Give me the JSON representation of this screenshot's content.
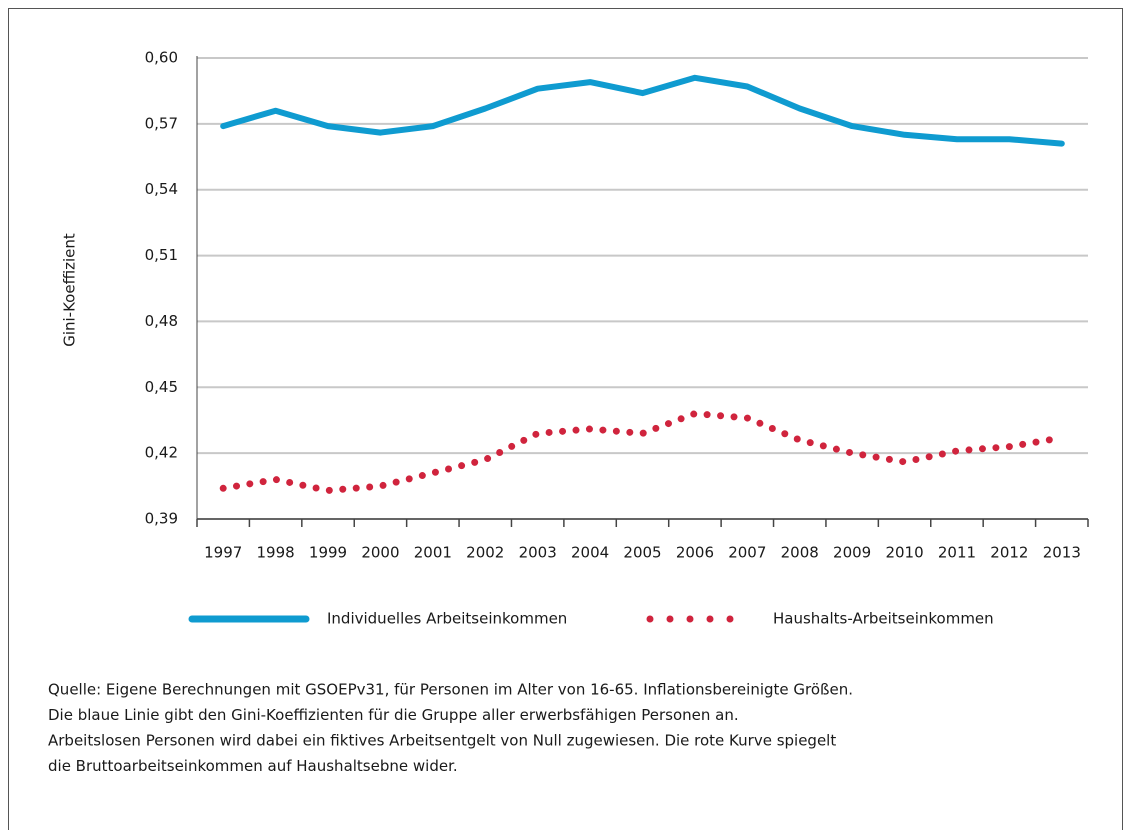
{
  "chart_data": {
    "type": "line",
    "y_label": "Gini-Koeffizient",
    "categories": [
      "1997",
      "1998",
      "1999",
      "2000",
      "2001",
      "2002",
      "2003",
      "2004",
      "2005",
      "2006",
      "2007",
      "2008",
      "2009",
      "2010",
      "2011",
      "2012",
      "2013"
    ],
    "series": [
      {
        "name": "Individuelles Arbeitseinkommen",
        "color": "#0f9bd0",
        "style": "solid",
        "values": [
          0.569,
          0.576,
          0.569,
          0.566,
          0.569,
          0.577,
          0.586,
          0.589,
          0.584,
          0.591,
          0.587,
          0.577,
          0.569,
          0.565,
          0.563,
          0.563,
          0.561
        ]
      },
      {
        "name": "Haushalts-Arbeitseinkommen",
        "color": "#d0243d",
        "style": "dotted",
        "values": [
          0.404,
          0.408,
          0.403,
          0.405,
          0.411,
          0.417,
          0.429,
          0.431,
          0.429,
          0.438,
          0.436,
          0.426,
          0.42,
          0.416,
          0.421,
          0.423,
          0.427
        ]
      }
    ],
    "ylim": [
      0.39,
      0.6
    ],
    "yticks": [
      {
        "value": 0.39,
        "label": "0,39"
      },
      {
        "value": 0.42,
        "label": "0,42"
      },
      {
        "value": 0.45,
        "label": "0,45"
      },
      {
        "value": 0.48,
        "label": "0,48"
      },
      {
        "value": 0.51,
        "label": "0,51"
      },
      {
        "value": 0.54,
        "label": "0,54"
      },
      {
        "value": 0.57,
        "label": "0,57"
      },
      {
        "value": 0.6,
        "label": "0,60"
      }
    ],
    "grid": true,
    "legend": "bottom",
    "note": [
      "Quelle: Eigene Berechnungen mit GSOEPv31, für Personen im Alter von 16-65. Inflationsbereinigte Größen.",
      "Die blaue Linie gibt den Gini-Koeffizienten für die Gruppe aller erwerbsfähigen Personen an.",
      "Arbeitslosen Personen wird dabei ein fiktives Arbeitsentgelt von Null zugewiesen. Die rote Kurve spiegelt",
      "die Bruttoarbeitseinkommen auf Haushaltsebne wider."
    ]
  }
}
